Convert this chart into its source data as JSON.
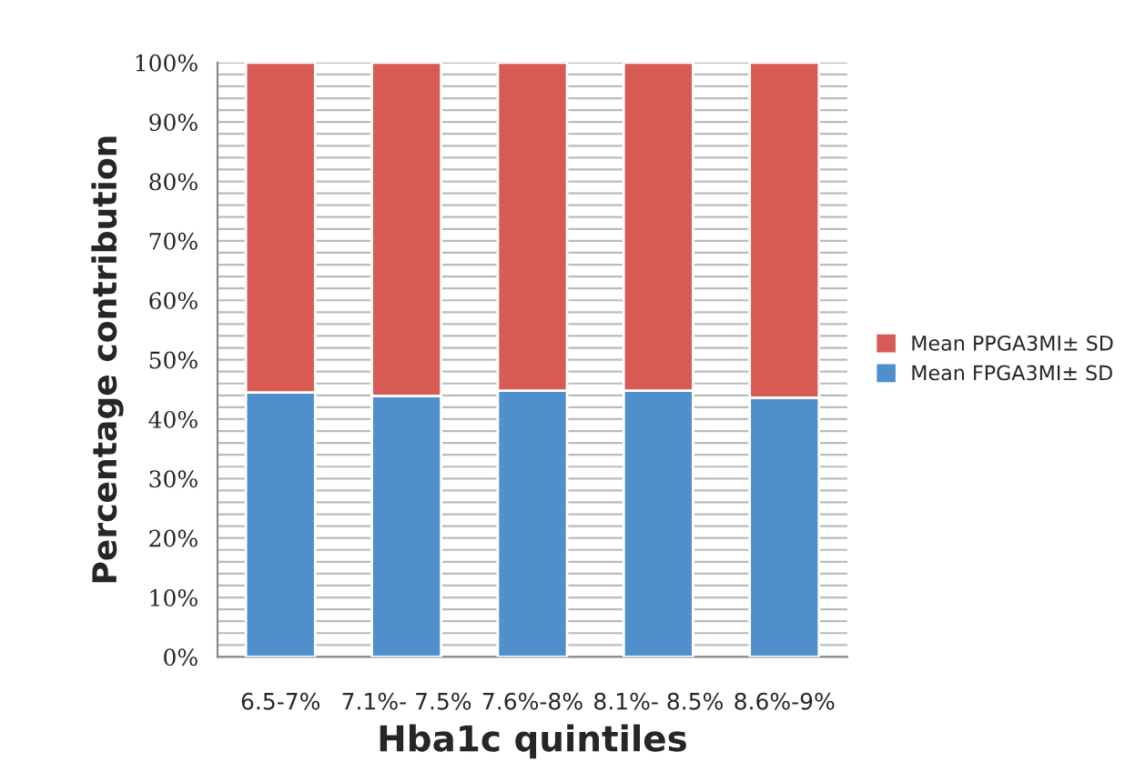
{
  "chart_data": {
    "type": "bar",
    "stacked": true,
    "xlabel": "Hba1c quintiles",
    "ylabel": "Percentage contribution",
    "categories": [
      "6.5-7%",
      "7.1%- 7.5%",
      "7.6%-8%",
      "8.1%- 8.5%",
      "8.6%-9%"
    ],
    "series": [
      {
        "name": "Mean FPGA3MI± SD",
        "color": "#4f8fcb",
        "values": [
          44.5,
          43.9,
          44.8,
          44.8,
          43.6
        ]
      },
      {
        "name": "Mean PPGA3MI± SD",
        "color": "#d85a54",
        "values": [
          55.5,
          56.1,
          55.2,
          55.2,
          56.4
        ]
      }
    ],
    "ylim": [
      0,
      100
    ],
    "yticks": [
      {
        "value": 0,
        "label": "0%"
      },
      {
        "value": 2,
        "label": null
      },
      {
        "value": 4,
        "label": null
      },
      {
        "value": 6,
        "label": null
      },
      {
        "value": 8,
        "label": null
      },
      {
        "value": 10,
        "label": "10%"
      },
      {
        "value": 12,
        "label": null
      },
      {
        "value": 14,
        "label": null
      },
      {
        "value": 16,
        "label": null
      },
      {
        "value": 18,
        "label": null
      },
      {
        "value": 20,
        "label": "20%"
      },
      {
        "value": 22,
        "label": null
      },
      {
        "value": 24,
        "label": null
      },
      {
        "value": 26,
        "label": null
      },
      {
        "value": 28,
        "label": null
      },
      {
        "value": 30,
        "label": "30%"
      },
      {
        "value": 32,
        "label": null
      },
      {
        "value": 34,
        "label": null
      },
      {
        "value": 36,
        "label": null
      },
      {
        "value": 38,
        "label": null
      },
      {
        "value": 40,
        "label": "40%"
      },
      {
        "value": 42,
        "label": null
      },
      {
        "value": 44,
        "label": null
      },
      {
        "value": 46,
        "label": null
      },
      {
        "value": 48,
        "label": null
      },
      {
        "value": 50,
        "label": "50%"
      },
      {
        "value": 52,
        "label": null
      },
      {
        "value": 54,
        "label": null
      },
      {
        "value": 56,
        "label": null
      },
      {
        "value": 58,
        "label": null
      },
      {
        "value": 60,
        "label": "60%"
      },
      {
        "value": 62,
        "label": null
      },
      {
        "value": 64,
        "label": null
      },
      {
        "value": 66,
        "label": null
      },
      {
        "value": 68,
        "label": null
      },
      {
        "value": 70,
        "label": "70%"
      },
      {
        "value": 72,
        "label": null
      },
      {
        "value": 74,
        "label": null
      },
      {
        "value": 76,
        "label": null
      },
      {
        "value": 78,
        "label": null
      },
      {
        "value": 80,
        "label": "80%"
      },
      {
        "value": 82,
        "label": null
      },
      {
        "value": 84,
        "label": null
      },
      {
        "value": 86,
        "label": null
      },
      {
        "value": 88,
        "label": null
      },
      {
        "value": 90,
        "label": "90%"
      },
      {
        "value": 92,
        "label": null
      },
      {
        "value": 94,
        "label": null
      },
      {
        "value": 96,
        "label": null
      },
      {
        "value": 98,
        "label": null
      },
      {
        "value": 100,
        "label": "100%"
      }
    ],
    "grid": "y",
    "legend": "right"
  }
}
